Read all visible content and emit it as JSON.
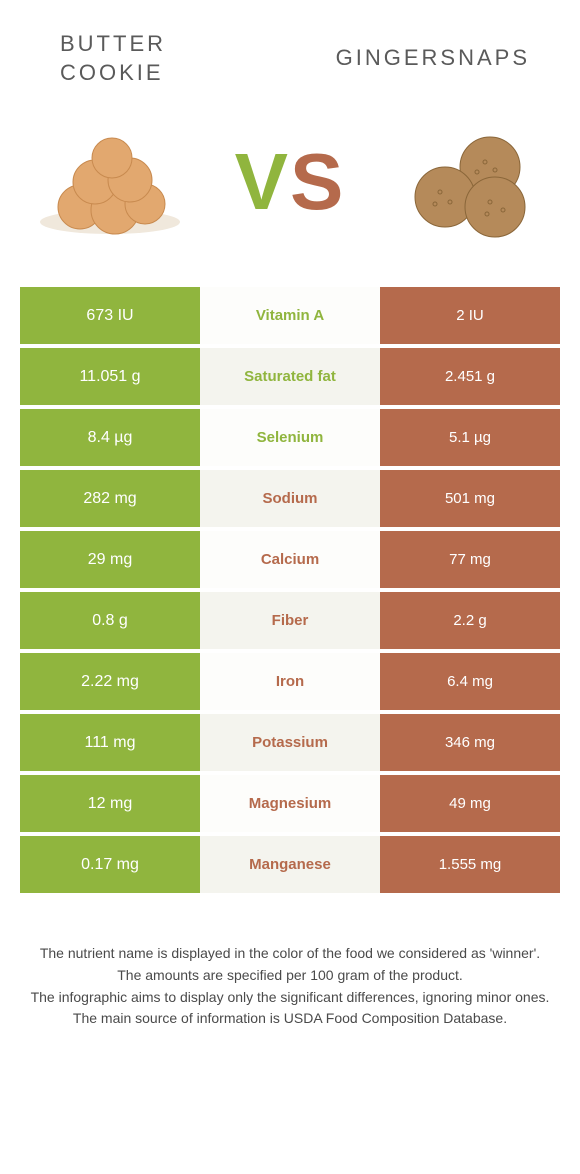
{
  "colors": {
    "left_bg": "#90b53e",
    "right_bg": "#b56a4c",
    "row_alt_light": "#fdfdfb",
    "row_alt_shade": "#f4f4ee",
    "nutrient_left_color": "#90b53e",
    "nutrient_right_color": "#b56a4c",
    "cell_text": "#ffffff"
  },
  "header": {
    "left_title": "BUTTER\nCOOKIE",
    "right_title": "GINGERSNAPS",
    "vs_v": "V",
    "vs_s": "S"
  },
  "rows": [
    {
      "left": "673 IU",
      "name": "Vitamin A",
      "right": "2 IU",
      "winner": "left"
    },
    {
      "left": "11.051 g",
      "name": "Saturated fat",
      "right": "2.451 g",
      "winner": "left"
    },
    {
      "left": "8.4 µg",
      "name": "Selenium",
      "right": "5.1 µg",
      "winner": "left"
    },
    {
      "left": "282 mg",
      "name": "Sodium",
      "right": "501 mg",
      "winner": "right"
    },
    {
      "left": "29 mg",
      "name": "Calcium",
      "right": "77 mg",
      "winner": "right"
    },
    {
      "left": "0.8 g",
      "name": "Fiber",
      "right": "2.2 g",
      "winner": "right"
    },
    {
      "left": "2.22 mg",
      "name": "Iron",
      "right": "6.4 mg",
      "winner": "right"
    },
    {
      "left": "111 mg",
      "name": "Potassium",
      "right": "346 mg",
      "winner": "right"
    },
    {
      "left": "12 mg",
      "name": "Magnesium",
      "right": "49 mg",
      "winner": "right"
    },
    {
      "left": "0.17 mg",
      "name": "Manganese",
      "right": "1.555 mg",
      "winner": "right"
    }
  ],
  "footer": {
    "l1": "The nutrient name is displayed in the color of the food we considered as 'winner'.",
    "l2": "The amounts are specified per 100 gram of the product.",
    "l3": "The infographic aims to display only the significant differences, ignoring minor ones.",
    "l4": "The main source of information is USDA Food Composition Database."
  }
}
